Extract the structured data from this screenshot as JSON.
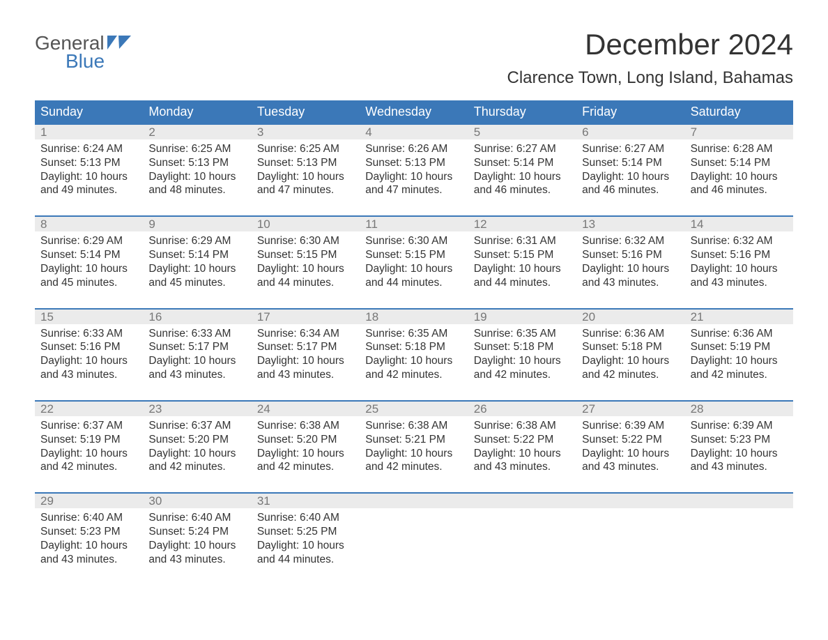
{
  "logo": {
    "word1": "General",
    "word2": "Blue"
  },
  "title": "December 2024",
  "location": "Clarence Town, Long Island, Bahamas",
  "colors": {
    "header_bg": "#3b78b8",
    "header_text": "#ffffff",
    "daynum_bg": "#ebebeb",
    "daynum_text": "#777777",
    "body_text": "#333333",
    "logo_gray": "#555555",
    "logo_blue": "#3b78b8",
    "page_bg": "#ffffff"
  },
  "typography": {
    "title_fontsize": 42,
    "location_fontsize": 24,
    "header_fontsize": 18,
    "cell_fontsize": 15.5,
    "font_family": "Arial"
  },
  "columns": [
    "Sunday",
    "Monday",
    "Tuesday",
    "Wednesday",
    "Thursday",
    "Friday",
    "Saturday"
  ],
  "weeks": [
    {
      "days": [
        {
          "num": "1",
          "sunrise": "6:24 AM",
          "sunset": "5:13 PM",
          "daylight_l1": "Daylight: 10 hours",
          "daylight_l2": "and 49 minutes."
        },
        {
          "num": "2",
          "sunrise": "6:25 AM",
          "sunset": "5:13 PM",
          "daylight_l1": "Daylight: 10 hours",
          "daylight_l2": "and 48 minutes."
        },
        {
          "num": "3",
          "sunrise": "6:25 AM",
          "sunset": "5:13 PM",
          "daylight_l1": "Daylight: 10 hours",
          "daylight_l2": "and 47 minutes."
        },
        {
          "num": "4",
          "sunrise": "6:26 AM",
          "sunset": "5:13 PM",
          "daylight_l1": "Daylight: 10 hours",
          "daylight_l2": "and 47 minutes."
        },
        {
          "num": "5",
          "sunrise": "6:27 AM",
          "sunset": "5:14 PM",
          "daylight_l1": "Daylight: 10 hours",
          "daylight_l2": "and 46 minutes."
        },
        {
          "num": "6",
          "sunrise": "6:27 AM",
          "sunset": "5:14 PM",
          "daylight_l1": "Daylight: 10 hours",
          "daylight_l2": "and 46 minutes."
        },
        {
          "num": "7",
          "sunrise": "6:28 AM",
          "sunset": "5:14 PM",
          "daylight_l1": "Daylight: 10 hours",
          "daylight_l2": "and 46 minutes."
        }
      ]
    },
    {
      "days": [
        {
          "num": "8",
          "sunrise": "6:29 AM",
          "sunset": "5:14 PM",
          "daylight_l1": "Daylight: 10 hours",
          "daylight_l2": "and 45 minutes."
        },
        {
          "num": "9",
          "sunrise": "6:29 AM",
          "sunset": "5:14 PM",
          "daylight_l1": "Daylight: 10 hours",
          "daylight_l2": "and 45 minutes."
        },
        {
          "num": "10",
          "sunrise": "6:30 AM",
          "sunset": "5:15 PM",
          "daylight_l1": "Daylight: 10 hours",
          "daylight_l2": "and 44 minutes."
        },
        {
          "num": "11",
          "sunrise": "6:30 AM",
          "sunset": "5:15 PM",
          "daylight_l1": "Daylight: 10 hours",
          "daylight_l2": "and 44 minutes."
        },
        {
          "num": "12",
          "sunrise": "6:31 AM",
          "sunset": "5:15 PM",
          "daylight_l1": "Daylight: 10 hours",
          "daylight_l2": "and 44 minutes."
        },
        {
          "num": "13",
          "sunrise": "6:32 AM",
          "sunset": "5:16 PM",
          "daylight_l1": "Daylight: 10 hours",
          "daylight_l2": "and 43 minutes."
        },
        {
          "num": "14",
          "sunrise": "6:32 AM",
          "sunset": "5:16 PM",
          "daylight_l1": "Daylight: 10 hours",
          "daylight_l2": "and 43 minutes."
        }
      ]
    },
    {
      "days": [
        {
          "num": "15",
          "sunrise": "6:33 AM",
          "sunset": "5:16 PM",
          "daylight_l1": "Daylight: 10 hours",
          "daylight_l2": "and 43 minutes."
        },
        {
          "num": "16",
          "sunrise": "6:33 AM",
          "sunset": "5:17 PM",
          "daylight_l1": "Daylight: 10 hours",
          "daylight_l2": "and 43 minutes."
        },
        {
          "num": "17",
          "sunrise": "6:34 AM",
          "sunset": "5:17 PM",
          "daylight_l1": "Daylight: 10 hours",
          "daylight_l2": "and 43 minutes."
        },
        {
          "num": "18",
          "sunrise": "6:35 AM",
          "sunset": "5:18 PM",
          "daylight_l1": "Daylight: 10 hours",
          "daylight_l2": "and 42 minutes."
        },
        {
          "num": "19",
          "sunrise": "6:35 AM",
          "sunset": "5:18 PM",
          "daylight_l1": "Daylight: 10 hours",
          "daylight_l2": "and 42 minutes."
        },
        {
          "num": "20",
          "sunrise": "6:36 AM",
          "sunset": "5:18 PM",
          "daylight_l1": "Daylight: 10 hours",
          "daylight_l2": "and 42 minutes."
        },
        {
          "num": "21",
          "sunrise": "6:36 AM",
          "sunset": "5:19 PM",
          "daylight_l1": "Daylight: 10 hours",
          "daylight_l2": "and 42 minutes."
        }
      ]
    },
    {
      "days": [
        {
          "num": "22",
          "sunrise": "6:37 AM",
          "sunset": "5:19 PM",
          "daylight_l1": "Daylight: 10 hours",
          "daylight_l2": "and 42 minutes."
        },
        {
          "num": "23",
          "sunrise": "6:37 AM",
          "sunset": "5:20 PM",
          "daylight_l1": "Daylight: 10 hours",
          "daylight_l2": "and 42 minutes."
        },
        {
          "num": "24",
          "sunrise": "6:38 AM",
          "sunset": "5:20 PM",
          "daylight_l1": "Daylight: 10 hours",
          "daylight_l2": "and 42 minutes."
        },
        {
          "num": "25",
          "sunrise": "6:38 AM",
          "sunset": "5:21 PM",
          "daylight_l1": "Daylight: 10 hours",
          "daylight_l2": "and 42 minutes."
        },
        {
          "num": "26",
          "sunrise": "6:38 AM",
          "sunset": "5:22 PM",
          "daylight_l1": "Daylight: 10 hours",
          "daylight_l2": "and 43 minutes."
        },
        {
          "num": "27",
          "sunrise": "6:39 AM",
          "sunset": "5:22 PM",
          "daylight_l1": "Daylight: 10 hours",
          "daylight_l2": "and 43 minutes."
        },
        {
          "num": "28",
          "sunrise": "6:39 AM",
          "sunset": "5:23 PM",
          "daylight_l1": "Daylight: 10 hours",
          "daylight_l2": "and 43 minutes."
        }
      ]
    },
    {
      "days": [
        {
          "num": "29",
          "sunrise": "6:40 AM",
          "sunset": "5:23 PM",
          "daylight_l1": "Daylight: 10 hours",
          "daylight_l2": "and 43 minutes."
        },
        {
          "num": "30",
          "sunrise": "6:40 AM",
          "sunset": "5:24 PM",
          "daylight_l1": "Daylight: 10 hours",
          "daylight_l2": "and 43 minutes."
        },
        {
          "num": "31",
          "sunrise": "6:40 AM",
          "sunset": "5:25 PM",
          "daylight_l1": "Daylight: 10 hours",
          "daylight_l2": "and 44 minutes."
        },
        {
          "num": "",
          "sunrise": "",
          "sunset": "",
          "daylight_l1": "",
          "daylight_l2": ""
        },
        {
          "num": "",
          "sunrise": "",
          "sunset": "",
          "daylight_l1": "",
          "daylight_l2": ""
        },
        {
          "num": "",
          "sunrise": "",
          "sunset": "",
          "daylight_l1": "",
          "daylight_l2": ""
        },
        {
          "num": "",
          "sunrise": "",
          "sunset": "",
          "daylight_l1": "",
          "daylight_l2": ""
        }
      ]
    }
  ],
  "labels": {
    "sunrise_prefix": "Sunrise: ",
    "sunset_prefix": "Sunset: "
  }
}
